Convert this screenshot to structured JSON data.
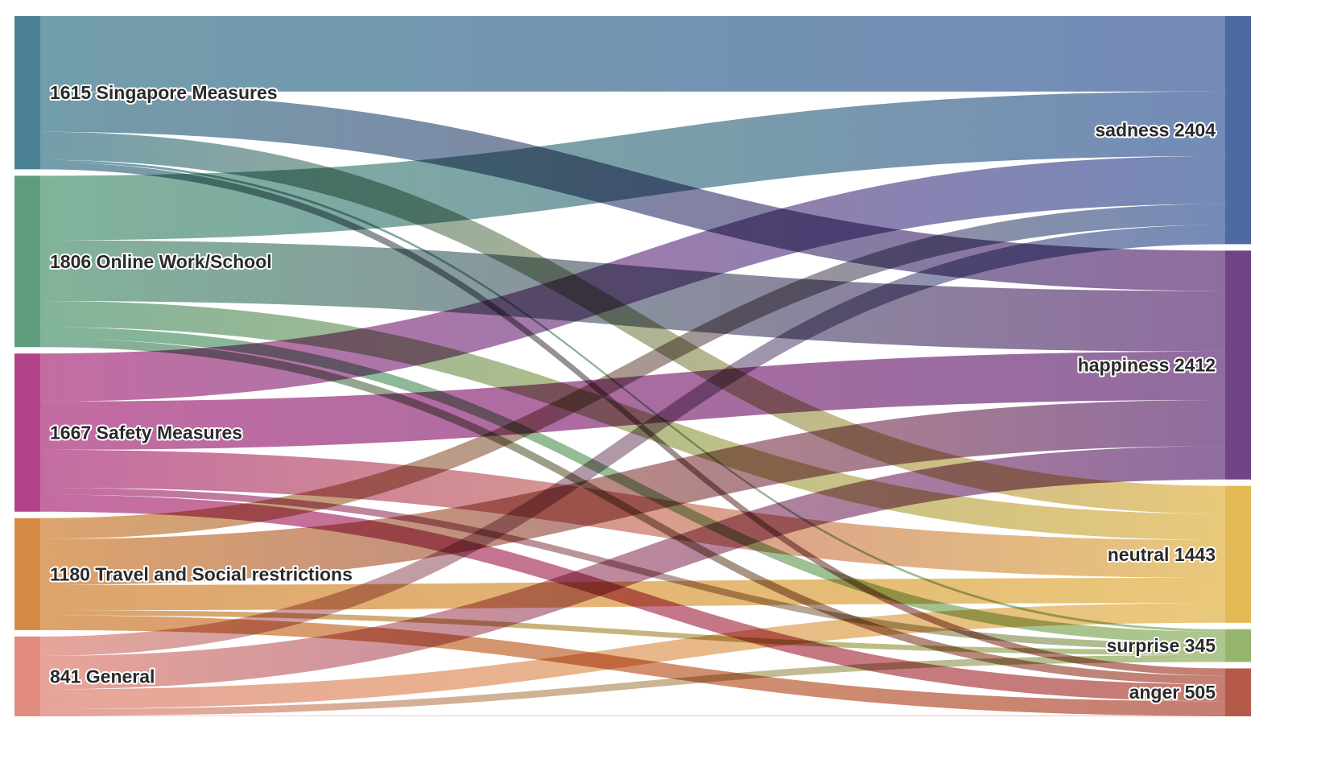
{
  "chart_data": {
    "type": "sankey",
    "sources": [
      {
        "id": "singapore",
        "label": "1615 Singapore Measures",
        "value": 1615,
        "color": "#4a8293"
      },
      {
        "id": "online",
        "label": "1806 Online Work/School",
        "value": 1806,
        "color": "#5e9e7e"
      },
      {
        "id": "safety",
        "label": "1667 Safety Measures",
        "value": 1667,
        "color": "#b34388"
      },
      {
        "id": "travel",
        "label": "1180 Travel and Social restrictions",
        "value": 1180,
        "color": "#d48a43"
      },
      {
        "id": "general",
        "label": "841 General",
        "value": 841,
        "color": "#e08b7e"
      }
    ],
    "targets": [
      {
        "id": "sadness",
        "label": "sadness 2404",
        "value": 2404,
        "color": "#4d6aa3"
      },
      {
        "id": "happiness",
        "label": "happiness 2412",
        "value": 2412,
        "color": "#704384"
      },
      {
        "id": "neutral",
        "label": "neutral 1443",
        "value": 1443,
        "color": "#e3b955"
      },
      {
        "id": "surprise",
        "label": "surprise 345",
        "value": 345,
        "color": "#96b66d"
      },
      {
        "id": "anger",
        "label": "anger 505",
        "value": 505,
        "color": "#b55a4b"
      }
    ],
    "links": [
      {
        "source": "singapore",
        "target": "sadness",
        "value": 795
      },
      {
        "source": "singapore",
        "target": "happiness",
        "value": 425
      },
      {
        "source": "singapore",
        "target": "neutral",
        "value": 295
      },
      {
        "source": "singapore",
        "target": "surprise",
        "value": 25
      },
      {
        "source": "singapore",
        "target": "anger",
        "value": 75
      },
      {
        "source": "online",
        "target": "sadness",
        "value": 680
      },
      {
        "source": "online",
        "target": "happiness",
        "value": 640
      },
      {
        "source": "online",
        "target": "neutral",
        "value": 275
      },
      {
        "source": "online",
        "target": "surprise",
        "value": 120
      },
      {
        "source": "online",
        "target": "anger",
        "value": 91
      },
      {
        "source": "safety",
        "target": "sadness",
        "value": 505
      },
      {
        "source": "safety",
        "target": "happiness",
        "value": 510
      },
      {
        "source": "safety",
        "target": "neutral",
        "value": 400
      },
      {
        "source": "safety",
        "target": "surprise",
        "value": 72
      },
      {
        "source": "safety",
        "target": "anger",
        "value": 180
      },
      {
        "source": "travel",
        "target": "sadness",
        "value": 220
      },
      {
        "source": "travel",
        "target": "happiness",
        "value": 485
      },
      {
        "source": "travel",
        "target": "neutral",
        "value": 265
      },
      {
        "source": "travel",
        "target": "surprise",
        "value": 55
      },
      {
        "source": "travel",
        "target": "anger",
        "value": 155
      },
      {
        "source": "general",
        "target": "sadness",
        "value": 204
      },
      {
        "source": "general",
        "target": "happiness",
        "value": 352
      },
      {
        "source": "general",
        "target": "neutral",
        "value": 208
      },
      {
        "source": "general",
        "target": "surprise",
        "value": 73
      },
      {
        "source": "general",
        "target": "anger",
        "value": 4
      }
    ]
  }
}
